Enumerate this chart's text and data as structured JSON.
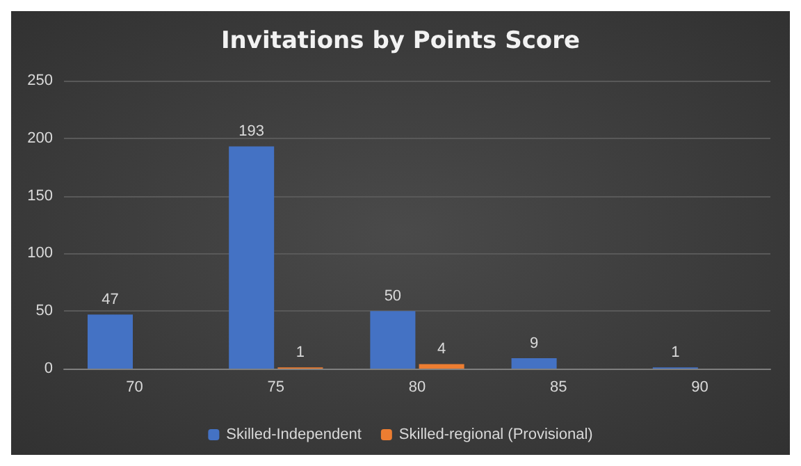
{
  "chart_data": {
    "type": "bar",
    "title": "Invitations by Points Score",
    "categories": [
      "70",
      "75",
      "80",
      "85",
      "90"
    ],
    "series": [
      {
        "name": "Skilled-Independent",
        "color": "#4472c4",
        "values": [
          47,
          193,
          50,
          9,
          1
        ]
      },
      {
        "name": "Skilled-regional (Provisional)",
        "color": "#ed7d31",
        "values": [
          null,
          1,
          4,
          null,
          null
        ]
      }
    ],
    "ylim": [
      0,
      250
    ],
    "yticks": [
      0,
      50,
      100,
      150,
      200,
      250
    ],
    "grid": "y",
    "legend": "bottom",
    "data_labels": true
  }
}
